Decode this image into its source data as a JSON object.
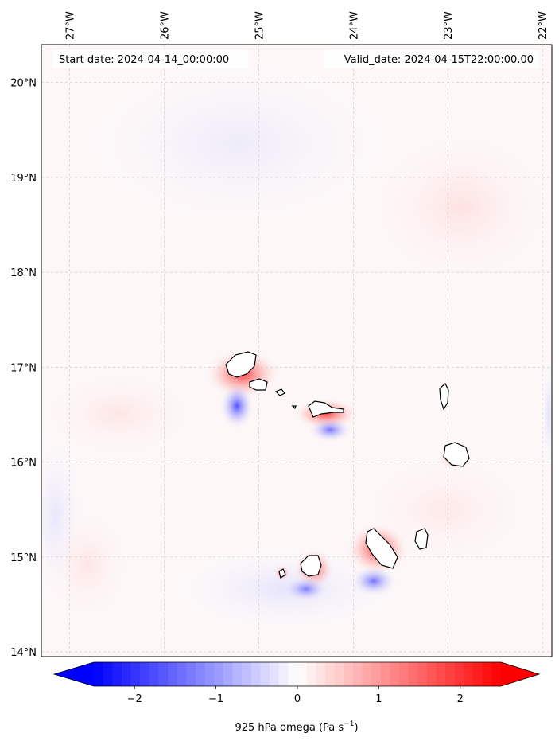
{
  "header": {
    "start_date": "Start date: 2024-04-14_00:00:00",
    "valid_date": "Valid_date: 2024-04-15T22:00:00.00"
  },
  "map": {
    "lon_ticks": [
      {
        "value": -27,
        "label": "27°W"
      },
      {
        "value": -26,
        "label": "26°W"
      },
      {
        "value": -25,
        "label": "25°W"
      },
      {
        "value": -24,
        "label": "24°W"
      },
      {
        "value": -23,
        "label": "23°W"
      },
      {
        "value": -22,
        "label": "22°W"
      }
    ],
    "lat_ticks": [
      {
        "value": 20,
        "label": "20°N"
      },
      {
        "value": 19,
        "label": "19°N"
      },
      {
        "value": 18,
        "label": "18°N"
      },
      {
        "value": 17,
        "label": "17°N"
      },
      {
        "value": 16,
        "label": "16°N"
      },
      {
        "value": 15,
        "label": "15°N"
      },
      {
        "value": 14,
        "label": "14°N"
      }
    ],
    "lon_range": [
      -27.3,
      -21.9
    ],
    "lat_range": [
      13.95,
      20.4
    ],
    "gridlines": true
  },
  "colorbar": {
    "ticks": [
      {
        "value": -2,
        "label": "−2"
      },
      {
        "value": -1,
        "label": "−1"
      },
      {
        "value": 0,
        "label": "0"
      },
      {
        "value": 1,
        "label": "1"
      },
      {
        "value": 2,
        "label": "2"
      }
    ],
    "range": [
      -2.5,
      2.5
    ],
    "extend": "both",
    "colormap": "bwr",
    "min_color": "#0000ff",
    "mid_color": "#ffffff",
    "max_color": "#ff0000",
    "label": "925 hPa omega (Pa s",
    "label_exp": "−1",
    "label_close": ")"
  }
}
